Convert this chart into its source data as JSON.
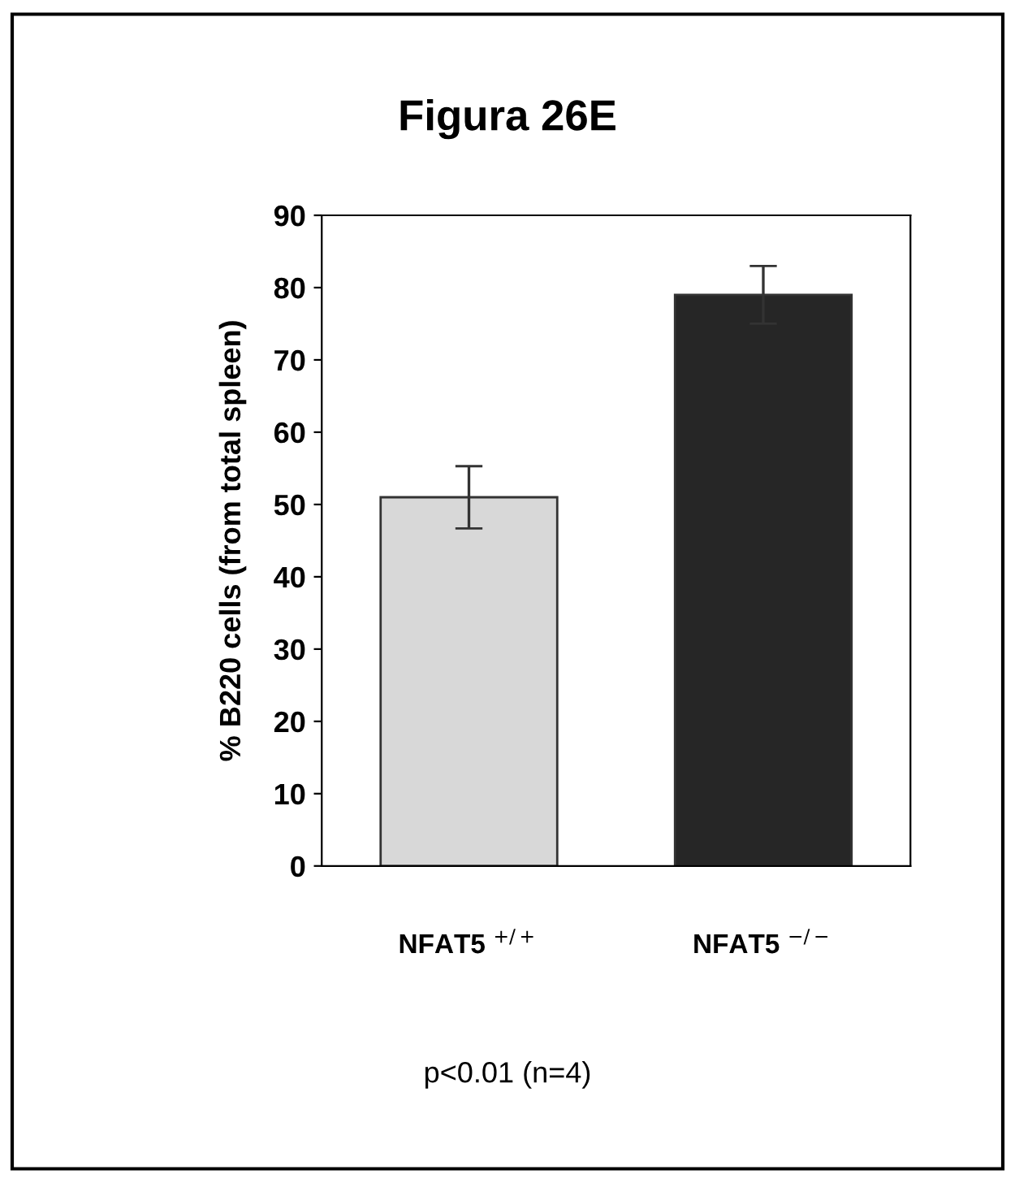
{
  "chart_data": {
    "type": "bar",
    "title": "Figura 26E",
    "ylabel": "% B220 cells (from total spleen)",
    "categories": [
      "NFAT5 $^{+/+}$",
      "NFAT5 $^{−/−}$"
    ],
    "values": [
      51,
      79
    ],
    "errors": [
      4.3,
      4
    ],
    "colors": [
      "#d8d8d8",
      "#262626"
    ],
    "ylim": [
      0,
      90
    ],
    "yticks": [
      0,
      10,
      20,
      30,
      40,
      50,
      60,
      70,
      80,
      90
    ],
    "grid": false,
    "annotations": [
      "p<0.01 (n=4)"
    ]
  }
}
